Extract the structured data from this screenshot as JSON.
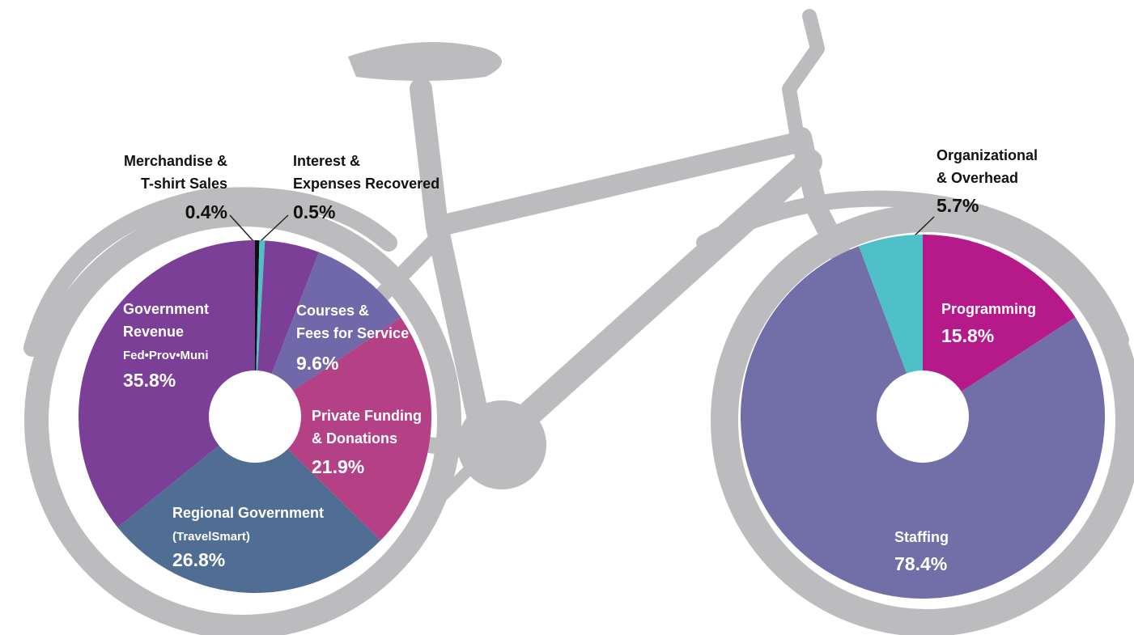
{
  "chart_data": [
    {
      "type": "pie",
      "categories": [
        [
          "Merchandise &",
          "T-shirt Sales"
        ],
        [
          "Interest &",
          "Expenses Recovered"
        ],
        null,
        [
          "Courses &",
          "Fees for Service"
        ],
        [
          "Private Funding",
          "& Donations"
        ],
        [
          "Regional Government",
          "(TravelSmart)"
        ],
        [
          "Government",
          "Revenue",
          "Fed•Prov•Muni"
        ]
      ],
      "values": [
        0.4,
        0.5,
        5.0,
        9.6,
        21.9,
        26.8,
        35.8
      ],
      "value_labels": [
        "0.4%",
        "0.5%",
        null,
        "9.6%",
        "21.9%",
        "26.8%",
        "35.8%"
      ],
      "colors": [
        "#111111",
        "#4fc0c8",
        "#7b3f98",
        "#7068a8",
        "#b44186",
        "#506d93",
        "#7b3f98"
      ]
    },
    {
      "type": "pie",
      "categories": [
        [
          "Programming"
        ],
        [
          "Staffing"
        ],
        [
          "Organizational",
          "& Overhead"
        ]
      ],
      "values": [
        15.8,
        78.4,
        5.7
      ],
      "value_labels": [
        "15.8%",
        "78.4%",
        "5.7%"
      ],
      "colors": [
        "#b5198a",
        "#716ea8",
        "#4fc0c8"
      ]
    }
  ]
}
